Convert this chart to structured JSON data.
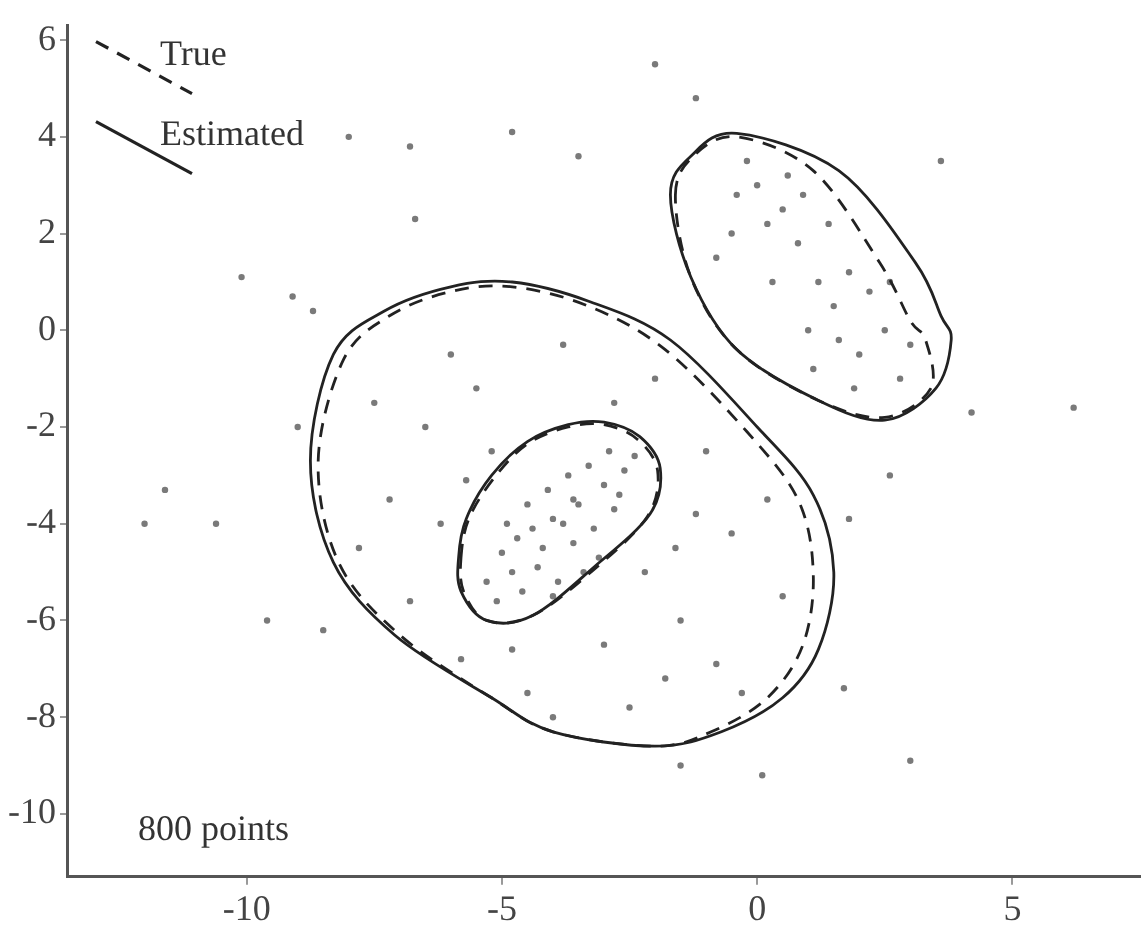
{
  "chart_data": {
    "type": "scatter",
    "xlim": [
      -13.5,
      7.5
    ],
    "ylim": [
      -11.3,
      6.3
    ],
    "xticks": [
      -10,
      -5,
      0,
      5
    ],
    "yticks": [
      -10,
      -8,
      -6,
      -4,
      -2,
      0,
      2,
      4,
      6
    ],
    "grid": false,
    "annotations": [
      "True",
      "Estimated",
      "800 points"
    ],
    "series": [
      {
        "color": "#7a7a7a",
        "marker": "circle",
        "x": [
          -8.0,
          -6.8,
          -4.8,
          -6.7,
          -10.1,
          -9.1,
          -8.7,
          -12.0,
          -10.6,
          -9.6,
          -8.5,
          -11.6,
          3.0,
          0.1,
          2.6,
          6.2,
          4.2,
          3.6,
          -3.5,
          -2.0,
          -1.2,
          1.8,
          -1.5,
          1.7,
          -9.0,
          -4.2,
          -3.5,
          -4.8,
          -3.0,
          -4.0,
          -3.6,
          -4.5,
          -3.2,
          -5.0,
          -2.6,
          -3.9,
          -4.6,
          -3.3,
          -2.8,
          -4.9,
          -3.7,
          -4.3,
          -3.1,
          -5.3,
          -2.4,
          -4.1,
          -3.4,
          -4.7,
          -3.8,
          -2.9,
          -5.1,
          -3.6,
          -4.4,
          -2.7,
          -4.0,
          -6.5,
          -7.2,
          -5.8,
          -1.5,
          -0.5,
          -2.0,
          -6.0,
          -4.5,
          -2.5,
          -0.8,
          -7.8,
          -5.5,
          -1.0,
          0.5,
          -3.0,
          -6.8,
          -2.2,
          -1.2,
          -5.2,
          -3.8,
          -7.5,
          -4.0,
          -1.8,
          0.2,
          -6.2,
          -2.8,
          -4.8,
          -0.3,
          -5.7,
          -1.6,
          0.5,
          1.2,
          0.0,
          2.0,
          1.5,
          -0.5,
          0.8,
          2.5,
          1.8,
          -0.2,
          0.3,
          2.8,
          1.0,
          0.6,
          2.2,
          -0.8,
          1.4,
          1.9,
          0.2,
          2.6,
          1.1,
          -0.4,
          3.0,
          0.9,
          1.6
        ],
        "values": [
          4.0,
          3.8,
          4.1,
          2.3,
          1.1,
          0.7,
          0.4,
          -4.0,
          -4.0,
          -6.0,
          -6.2,
          -3.3,
          -8.9,
          -9.2,
          -3.0,
          -1.6,
          -1.7,
          3.5,
          3.6,
          5.5,
          4.8,
          -3.9,
          -9.0,
          -7.4,
          -2.0,
          -4.5,
          -3.6,
          -5.0,
          -3.2,
          -3.9,
          -4.4,
          -3.6,
          -4.1,
          -4.6,
          -2.9,
          -5.2,
          -5.4,
          -2.8,
          -3.7,
          -4.0,
          -3.0,
          -4.9,
          -4.7,
          -5.2,
          -2.6,
          -3.3,
          -5.0,
          -4.3,
          -4.0,
          -2.5,
          -5.6,
          -3.5,
          -4.1,
          -3.4,
          -5.5,
          -2.0,
          -3.5,
          -6.8,
          -6.0,
          -4.2,
          -1.0,
          -0.5,
          -7.5,
          -7.8,
          -6.9,
          -4.5,
          -1.2,
          -2.5,
          -5.5,
          -6.5,
          -5.6,
          -5.0,
          -3.8,
          -2.5,
          -0.3,
          -1.5,
          -8.0,
          -7.2,
          -3.5,
          -4.0,
          -1.5,
          -6.6,
          -7.5,
          -3.1,
          -4.5,
          2.5,
          1.0,
          3.0,
          -0.5,
          0.5,
          2.0,
          1.8,
          0.0,
          1.2,
          3.5,
          1.0,
          -1.0,
          0.0,
          3.2,
          0.8,
          1.5,
          2.2,
          -1.2,
          2.2,
          1.0,
          -0.8,
          2.8,
          -0.3,
          2.8,
          -0.2
        ]
      }
    ]
  }
}
